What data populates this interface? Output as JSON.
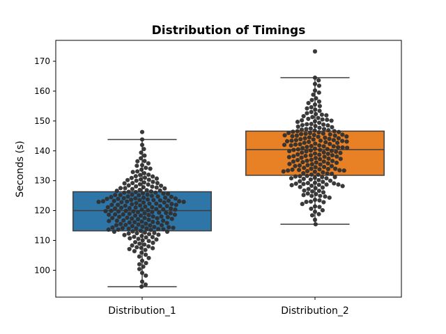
{
  "chart_data": {
    "type": "box",
    "overlay": "swarm",
    "title": "Distribution of Timings",
    "xlabel": "",
    "ylabel": "Seconds (s)",
    "ylim": [
      91,
      177
    ],
    "yticks": [
      100,
      110,
      120,
      130,
      140,
      150,
      160,
      170
    ],
    "grid": false,
    "categories": [
      "Distribution_1",
      "Distribution_2"
    ],
    "series": [
      {
        "name": "Distribution_1",
        "color": "#2e75a8",
        "box": {
          "whisker_low": 94.5,
          "q1": 113.2,
          "median": 120.0,
          "q3": 126.3,
          "whisker_high": 143.8
        },
        "points": [
          94.5,
          95.2,
          96.2,
          98.2,
          99.1,
          100.4,
          101.2,
          102.0,
          102.4,
          103.2,
          104.1,
          104.6,
          105.2,
          105.9,
          106.4,
          106.8,
          107.1,
          107.4,
          107.7,
          108.0,
          108.3,
          108.9,
          109.4,
          109.8,
          110.3,
          110.7,
          111.1,
          111.5,
          111.9,
          112.3,
          112.6,
          112.9,
          113.2,
          113.5,
          113.8,
          114.0,
          114.3,
          114.5,
          114.8,
          115.0,
          115.3,
          115.5,
          115.8,
          116.0,
          116.2,
          116.5,
          116.7,
          116.9,
          117.2,
          117.4,
          117.6,
          117.8,
          118.0,
          118.3,
          118.5,
          118.7,
          118.9,
          119.1,
          119.3,
          119.5,
          119.7,
          119.9,
          120.1,
          120.3,
          120.5,
          120.7,
          120.9,
          121.1,
          121.3,
          121.5,
          121.7,
          121.9,
          122.1,
          122.3,
          122.5,
          122.7,
          122.9,
          123.1,
          123.3,
          123.5,
          123.7,
          123.9,
          124.1,
          124.3,
          124.5,
          124.7,
          124.9,
          125.1,
          125.3,
          125.6,
          125.8,
          126.0,
          126.3,
          126.6,
          126.9,
          127.2,
          127.5,
          127.8,
          128.1,
          128.4,
          128.8,
          129.2,
          129.6,
          130.0,
          130.4,
          130.9,
          131.4,
          132.0,
          132.5,
          133.1,
          133.7,
          134.3,
          135.0,
          135.8,
          136.6,
          137.5,
          138.4,
          139.4,
          140.6,
          142.0,
          143.8,
          146.3,
          110.5,
          111.8,
          112.4,
          113.0,
          113.6,
          114.1,
          114.6,
          115.1,
          115.6,
          116.1,
          116.6,
          117.1,
          117.5,
          117.9,
          118.3,
          118.7,
          119.1,
          119.5,
          119.9,
          120.3,
          120.7,
          121.1,
          121.5,
          121.9,
          122.3,
          122.7,
          123.1,
          123.5,
          123.9,
          124.3,
          124.7,
          125.2,
          125.7,
          126.2,
          126.8,
          127.4,
          128.0,
          128.7,
          129.4,
          130.2,
          131.0,
          131.9,
          132.9,
          134.0,
          135.2,
          136.5,
          108.6,
          110.0,
          111.2,
          112.1,
          112.9,
          113.7,
          114.4,
          115.2,
          115.9,
          116.6,
          117.3,
          118.0,
          118.6,
          119.2,
          119.8,
          120.4,
          121.0,
          121.6,
          122.2,
          122.8,
          123.4,
          124.0,
          124.6,
          125.3,
          126.0,
          126.7,
          127.5,
          128.3,
          129.2,
          130.3,
          131.5,
          107.5,
          109.2,
          111.0,
          112.5,
          113.9,
          115.1,
          116.3,
          117.5,
          118.6,
          119.7,
          120.8,
          121.9,
          123.0,
          124.1,
          125.2,
          126.4,
          127.7,
          129.1,
          130.7,
          123.2,
          123.6,
          122.9,
          114.2,
          113.6,
          114.0
        ]
      },
      {
        "name": "Distribution_2",
        "color": "#e88126",
        "box": {
          "whisker_low": 115.4,
          "q1": 131.8,
          "median": 140.4,
          "q3": 146.6,
          "whisker_high": 164.5
        },
        "points": [
          115.4,
          116.9,
          118.4,
          119.6,
          120.6,
          121.4,
          122.2,
          122.9,
          123.6,
          124.3,
          124.9,
          125.5,
          126.1,
          126.7,
          127.2,
          127.7,
          128.2,
          128.7,
          129.2,
          129.6,
          130.0,
          130.4,
          130.8,
          131.2,
          131.6,
          132.0,
          132.4,
          132.8,
          133.1,
          133.4,
          133.7,
          134.0,
          134.3,
          134.6,
          134.9,
          135.2,
          135.5,
          135.8,
          136.1,
          136.4,
          136.7,
          137.0,
          137.3,
          137.6,
          137.9,
          138.2,
          138.5,
          138.8,
          139.1,
          139.4,
          139.7,
          140.0,
          140.3,
          140.6,
          140.9,
          141.2,
          141.5,
          141.8,
          142.1,
          142.4,
          142.7,
          143.0,
          143.3,
          143.6,
          143.9,
          144.2,
          144.5,
          144.8,
          145.1,
          145.4,
          145.7,
          146.0,
          146.3,
          146.6,
          146.9,
          147.3,
          147.7,
          148.1,
          148.5,
          148.9,
          149.4,
          149.9,
          150.4,
          151.0,
          151.6,
          152.3,
          153.0,
          153.8,
          154.6,
          155.5,
          156.5,
          157.6,
          158.8,
          160.2,
          161.8,
          163.6,
          164.5,
          173.3,
          128.9,
          129.1,
          129.3,
          128.7,
          128.5,
          128.3,
          133.6,
          133.8,
          134.0,
          133.4,
          133.2,
          136.4,
          136.6,
          136.2,
          136.0,
          138.5,
          138.7,
          138.3,
          138.1,
          140.5,
          140.7,
          140.3,
          140.1,
          142.0,
          142.2,
          141.8,
          141.6,
          143.6,
          143.8,
          143.4,
          143.2,
          145.1,
          145.3,
          144.9,
          144.7,
          146.4,
          146.6,
          146.2,
          146.0,
          147.5,
          147.3,
          149.0,
          148.8,
          150.7,
          150.5,
          152.1,
          151.9,
          126.6,
          126.4,
          124.9,
          124.7,
          123.0,
          122.8,
          131.0,
          131.2,
          130.8,
          130.6,
          132.5,
          132.3,
          135.1,
          134.9,
          137.4,
          137.2,
          139.5,
          139.3,
          141.3,
          141.1,
          142.9,
          142.7,
          144.4,
          144.2,
          145.8,
          145.6,
          121.2,
          125.7,
          127.9,
          130.2,
          132.0,
          134.5,
          136.9,
          139.0,
          141.0,
          143.1,
          145.2,
          147.9,
          150.1,
          155.0,
          157.0,
          159.5,
          162.4,
          137.7,
          139.8,
          141.5,
          143.4,
          145.5,
          147.1,
          148.3,
          149.7,
          151.3,
          153.4,
          135.6,
          133.0,
          131.5,
          129.8,
          127.5,
          125.2,
          123.4,
          120.1,
          118.8,
          129.0,
          128.6,
          133.9,
          133.5,
          138.0,
          139.9,
          142.3,
          144.0,
          146.8,
          148.6,
          150.2,
          152.6,
          154.2,
          156.0,
          131.4,
          135.4
        ]
      }
    ]
  }
}
